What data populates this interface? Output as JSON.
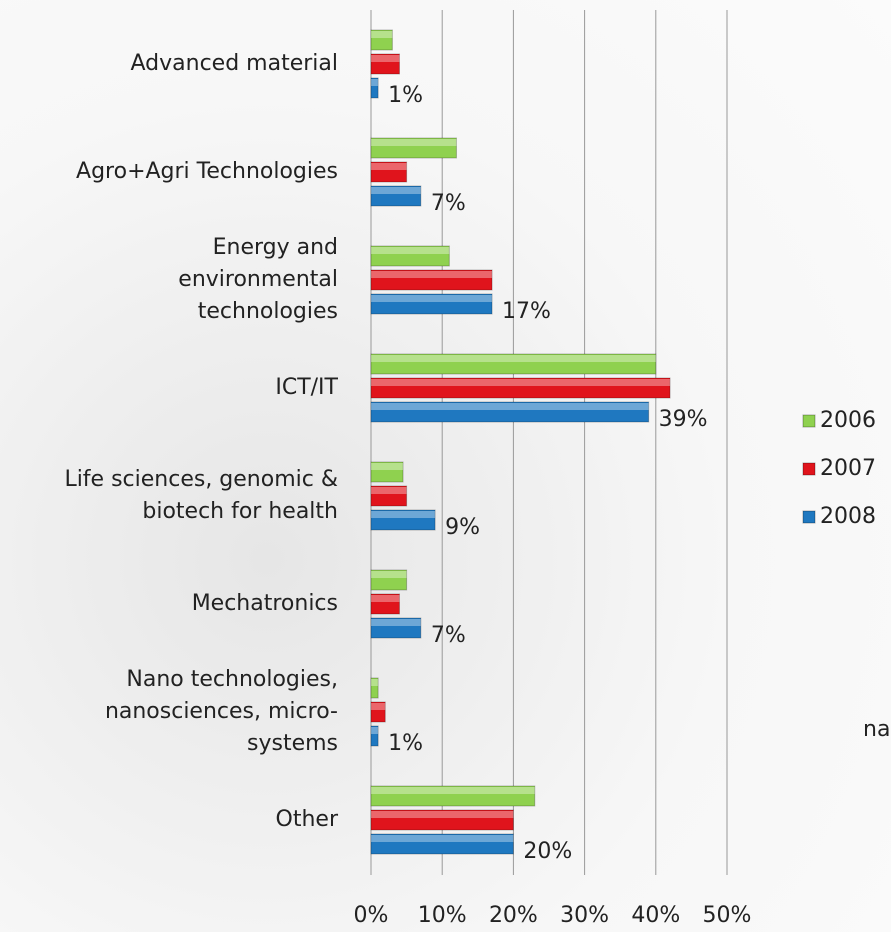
{
  "chart_data": {
    "type": "hbar",
    "categories": [
      "Advanced material",
      "Agro+Agri Technologies",
      "Energy and\nenvironmental\ntechnologies",
      "ICT/IT",
      "Life sciences, genomic &\nbiotech for  health",
      "Mechatronics",
      "Nano technologies,\nnanosciences, micro-\nsystems",
      "Other"
    ],
    "series": [
      {
        "name": "2006",
        "color": "#8fd14f",
        "values": [
          3,
          12,
          11,
          40,
          4.5,
          5,
          1,
          23
        ]
      },
      {
        "name": "2007",
        "color": "#e0141c",
        "values": [
          4,
          5,
          17,
          42,
          5,
          4,
          2,
          20
        ]
      },
      {
        "name": "2008",
        "color": "#1f78c0",
        "values": [
          1,
          7,
          17,
          39,
          9,
          7,
          1,
          20
        ],
        "value_labels": [
          "1%",
          "7%",
          "17%",
          "39%",
          "9%",
          "7%",
          "1%",
          "20%"
        ]
      }
    ],
    "xlim": [
      0,
      50
    ],
    "xticks": [
      {
        "value": 0,
        "label": "0%"
      },
      {
        "value": 10,
        "label": "10%"
      },
      {
        "value": 20,
        "label": "20%"
      },
      {
        "value": 30,
        "label": "30%"
      },
      {
        "value": 40,
        "label": "40%"
      },
      {
        "value": 50,
        "label": "50%"
      }
    ],
    "grid": true,
    "legend": "right",
    "background_text": "na"
  }
}
